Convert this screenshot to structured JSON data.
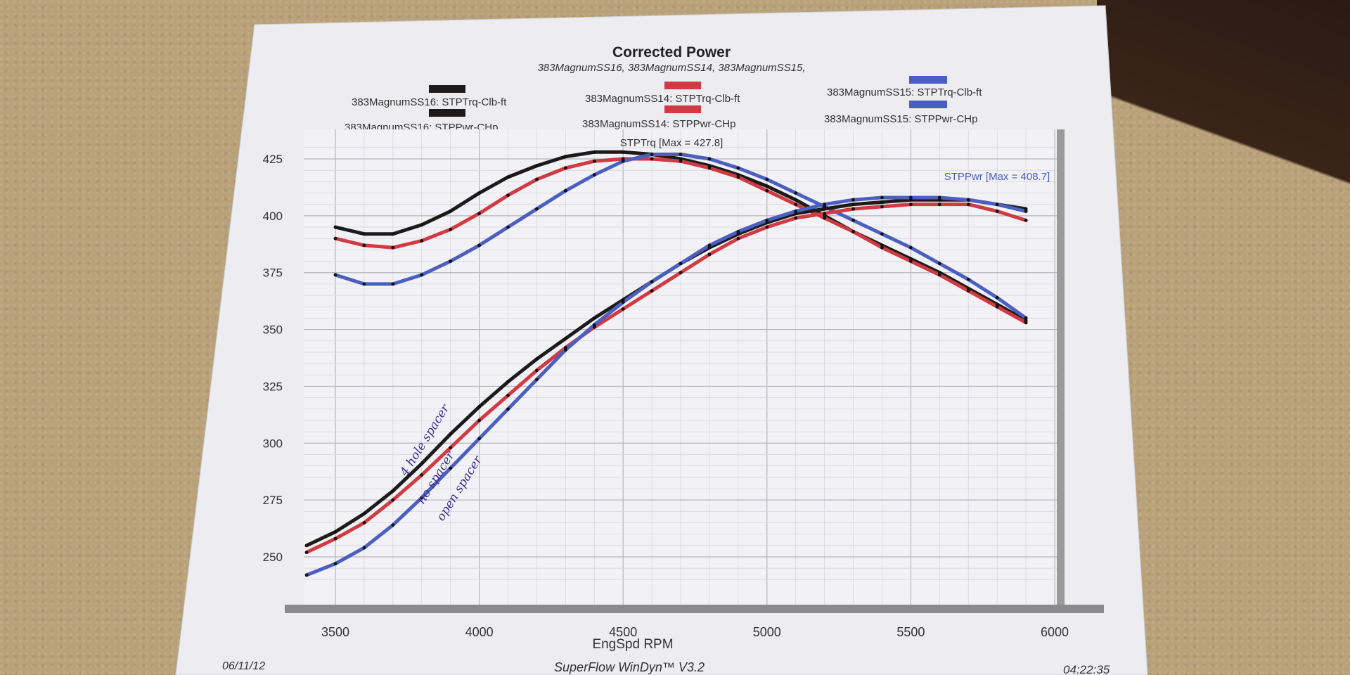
{
  "header": {
    "title": "Corrected Power",
    "subtitle": "383MagnumSS16, 383MagnumSS14, 383MagnumSS15,"
  },
  "legend": [
    {
      "label": "383MagnumSS16: STPTrq-Clb-ft",
      "color": "#1d1b1a"
    },
    {
      "label": "383MagnumSS16: STPPwr-CHp",
      "color": "#1d1b1a"
    },
    {
      "label": "383MagnumSS14: STPTrq-Clb-ft",
      "color": "#d03a42"
    },
    {
      "label": "383MagnumSS14: STPPwr-CHp",
      "color": "#d03a42"
    },
    {
      "label": "383MagnumSS15: STPTrq-Clb-ft",
      "color": "#4a5fc0"
    },
    {
      "label": "383MagnumSS15: STPPwr-CHp",
      "color": "#4a5fc0"
    }
  ],
  "annotations": {
    "trq_max": "STPTrq [Max = 427.8]",
    "pwr_max": "STPPwr [Max = 408.7]"
  },
  "handwriting": {
    "black": "4 hole spacer",
    "red": "no spacer",
    "blue": "open spacer"
  },
  "footer": {
    "date": "06/11/12",
    "software": "SuperFlow WinDyn™ V3.2",
    "time": "04:22:35"
  },
  "chart_data": {
    "type": "line",
    "title": "Corrected Power",
    "xlabel": "EngSpd RPM",
    "ylabel": "",
    "xlim": [
      3400,
      6050
    ],
    "ylim": [
      235,
      435
    ],
    "x_ticks": [
      3500,
      4000,
      4500,
      5000,
      5500,
      6000
    ],
    "y_ticks": [
      250,
      275,
      300,
      325,
      350,
      375,
      400,
      425
    ],
    "grid": true,
    "series": [
      {
        "name": "383MagnumSS16: STPTrq-Clb-ft",
        "color": "#1d1b1a",
        "x": [
          3500,
          3600,
          3700,
          3800,
          3900,
          4000,
          4100,
          4200,
          4300,
          4400,
          4500,
          4600,
          4700,
          4800,
          4900,
          5000,
          5100,
          5200,
          5300,
          5400,
          5500,
          5600,
          5700,
          5800,
          5900
        ],
        "y": [
          395,
          392,
          392,
          396,
          402,
          410,
          417,
          422,
          426,
          428,
          428,
          427,
          425,
          422,
          418,
          413,
          407,
          400,
          393,
          387,
          381,
          375,
          368,
          361,
          354
        ]
      },
      {
        "name": "383MagnumSS14: STPTrq-Clb-ft",
        "color": "#d03a42",
        "x": [
          3500,
          3600,
          3700,
          3800,
          3900,
          4000,
          4100,
          4200,
          4300,
          4400,
          4500,
          4600,
          4700,
          4800,
          4900,
          5000,
          5100,
          5200,
          5300,
          5400,
          5500,
          5600,
          5700,
          5800,
          5900
        ],
        "y": [
          390,
          387,
          386,
          389,
          394,
          401,
          409,
          416,
          421,
          424,
          425,
          425,
          424,
          421,
          417,
          411,
          405,
          399,
          393,
          386,
          380,
          374,
          367,
          360,
          353
        ]
      },
      {
        "name": "383MagnumSS15: STPTrq-Clb-ft",
        "color": "#4a5fc0",
        "x": [
          3500,
          3600,
          3700,
          3800,
          3900,
          4000,
          4100,
          4200,
          4300,
          4400,
          4500,
          4600,
          4700,
          4800,
          4900,
          5000,
          5100,
          5200,
          5300,
          5400,
          5500,
          5600,
          5700,
          5800,
          5900
        ],
        "y": [
          374,
          370,
          370,
          374,
          380,
          387,
          395,
          403,
          411,
          418,
          424,
          427,
          427,
          425,
          421,
          416,
          410,
          404,
          398,
          392,
          386,
          379,
          372,
          364,
          355
        ]
      },
      {
        "name": "383MagnumSS16: STPPwr-CHp",
        "color": "#1d1b1a",
        "x": [
          3400,
          3500,
          3600,
          3700,
          3800,
          3900,
          4000,
          4100,
          4200,
          4300,
          4400,
          4500,
          4600,
          4700,
          4800,
          4900,
          5000,
          5100,
          5200,
          5300,
          5400,
          5500,
          5600,
          5700,
          5800,
          5900
        ],
        "y": [
          255,
          261,
          269,
          279,
          291,
          304,
          316,
          327,
          337,
          346,
          355,
          363,
          371,
          379,
          386,
          392,
          397,
          401,
          403,
          405,
          406,
          407,
          407,
          407,
          405,
          403
        ]
      },
      {
        "name": "383MagnumSS14: STPPwr-CHp",
        "color": "#d03a42",
        "x": [
          3400,
          3500,
          3600,
          3700,
          3800,
          3900,
          4000,
          4100,
          4200,
          4300,
          4400,
          4500,
          4600,
          4700,
          4800,
          4900,
          5000,
          5100,
          5200,
          5300,
          5400,
          5500,
          5600,
          5700,
          5800,
          5900
        ],
        "y": [
          252,
          258,
          265,
          275,
          286,
          298,
          310,
          321,
          332,
          342,
          351,
          359,
          367,
          375,
          383,
          390,
          395,
          399,
          401,
          403,
          404,
          405,
          405,
          405,
          402,
          398
        ]
      },
      {
        "name": "383MagnumSS15: STPPwr-CHp",
        "color": "#4a5fc0",
        "x": [
          3400,
          3500,
          3600,
          3700,
          3800,
          3900,
          4000,
          4100,
          4200,
          4300,
          4400,
          4500,
          4600,
          4700,
          4800,
          4900,
          5000,
          5100,
          5200,
          5300,
          5400,
          5500,
          5600,
          5700,
          5800,
          5900
        ],
        "y": [
          242,
          247,
          254,
          264,
          276,
          289,
          302,
          315,
          328,
          341,
          352,
          362,
          371,
          379,
          387,
          393,
          398,
          402,
          405,
          407,
          408,
          408,
          408,
          407,
          405,
          402
        ]
      }
    ]
  }
}
